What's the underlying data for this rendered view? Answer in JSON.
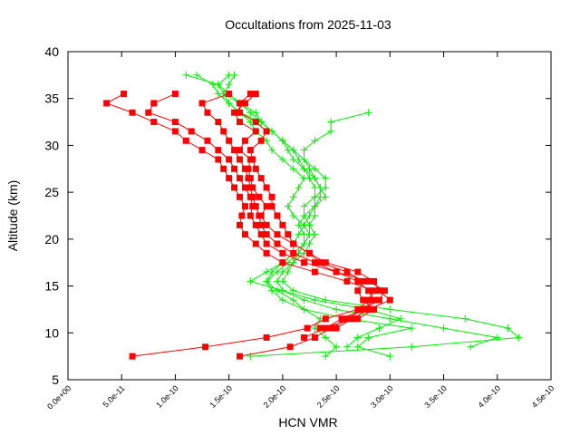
{
  "chart_data": {
    "type": "line",
    "title": "Occultations from 2025-11-03",
    "xlabel": "HCN VMR",
    "ylabel": "Altitude (km)",
    "xlim": [
      0,
      4.5e-10
    ],
    "ylim": [
      5,
      40
    ],
    "xticks": [
      0,
      5e-11,
      1e-10,
      1.5e-10,
      2e-10,
      2.5e-10,
      3e-10,
      3.5e-10,
      4e-10,
      4.5e-10
    ],
    "xtick_labels": [
      "0.0e+00",
      "5.0e-11",
      "1.0e-10",
      "1.5e-10",
      "2.0e-10",
      "2.5e-10",
      "3.0e-10",
      "3.5e-10",
      "4.0e-10",
      "4.5e-10"
    ],
    "yticks": [
      5,
      10,
      15,
      20,
      25,
      30,
      35,
      40
    ],
    "ytick_labels": [
      "5",
      "10",
      "15",
      "20",
      "25",
      "30",
      "35",
      "40"
    ],
    "grid": false,
    "colors": {
      "red_series": "#ff0000",
      "green_series": "#00ee00"
    },
    "red_altitudes": [
      7.5,
      8.5,
      9.5,
      10.5,
      11.5,
      12.5,
      13.5,
      14.5,
      15.5,
      16.5,
      17.5,
      18.5,
      19.5,
      20.5,
      21.5,
      22.5,
      23.5,
      24.5,
      25.5,
      26.5,
      27.5,
      28.5,
      29.5,
      30.5,
      31.5,
      32.5,
      33.5,
      34.5,
      35.5
    ],
    "green_altitudes": [
      7.5,
      8.5,
      9.5,
      10.5,
      11.5,
      12.5,
      13.5,
      14.5,
      15.5,
      16.5,
      17.5,
      18.5,
      19.5,
      20.5,
      21.5,
      22.5,
      23.5,
      24.5,
      25.5,
      26.5,
      27.5,
      28.5,
      29.5,
      30.5,
      31.5,
      32.5,
      33.5,
      34.5,
      35.5,
      36.5,
      37.5
    ],
    "series": [
      {
        "marker": "square",
        "color": "#ff0000",
        "values": [
          6e-11,
          1.28e-10,
          1.85e-10,
          2.23e-10,
          2.4e-10,
          2.7e-10,
          2.8e-10,
          2.85e-10,
          2.6e-10,
          2.3e-10,
          2e-10,
          1.85e-10,
          1.75e-10,
          1.65e-10,
          1.6e-10,
          1.62e-10,
          1.65e-10,
          1.6e-10,
          1.55e-10,
          1.5e-10,
          1.45e-10,
          1.4e-10,
          1.25e-10,
          1.1e-10,
          1e-10,
          8e-11,
          6e-11,
          3.6e-11,
          5.2e-11
        ]
      },
      {
        "marker": "square",
        "color": "#ff0000",
        "values": [
          1.6e-10,
          2.07e-10,
          2.3e-10,
          2.45e-10,
          2.6e-10,
          2.75e-10,
          2.85e-10,
          2.8e-10,
          2.7e-10,
          2.5e-10,
          2.2e-10,
          2e-10,
          1.85e-10,
          1.8e-10,
          1.75e-10,
          1.7e-10,
          1.72e-10,
          1.7e-10,
          1.65e-10,
          1.6e-10,
          1.55e-10,
          1.5e-10,
          1.4e-10,
          1.3e-10,
          1.15e-10,
          1e-10,
          7.5e-11,
          8e-11,
          1e-10
        ]
      },
      {
        "marker": "square",
        "color": "#ff0000",
        "values": [
          null,
          null,
          2.2e-10,
          2.4e-10,
          2.55e-10,
          2.75e-10,
          2.9e-10,
          2.95e-10,
          2.8e-10,
          2.5e-10,
          2.3e-10,
          2.1e-10,
          1.95e-10,
          1.85e-10,
          1.8e-10,
          1.78e-10,
          1.75e-10,
          1.72e-10,
          1.7e-10,
          1.68e-10,
          1.65e-10,
          1.6e-10,
          1.55e-10,
          1.5e-10,
          1.45e-10,
          1.4e-10,
          1.3e-10,
          1.25e-10,
          1.5e-10
        ]
      },
      {
        "marker": "square",
        "color": "#ff0000",
        "values": [
          null,
          null,
          null,
          2.5e-10,
          2.65e-10,
          2.8e-10,
          3e-10,
          2.9e-10,
          2.85e-10,
          2.7e-10,
          2.4e-10,
          2.25e-10,
          2.1e-10,
          1.95e-10,
          1.85e-10,
          1.8e-10,
          1.85e-10,
          1.78e-10,
          1.72e-10,
          1.7e-10,
          1.68e-10,
          1.7e-10,
          1.6e-10,
          1.65e-10,
          1.75e-10,
          1.6e-10,
          1.55e-10,
          1.65e-10,
          1.75e-10
        ]
      },
      {
        "marker": "square",
        "color": "#ff0000",
        "values": [
          null,
          null,
          null,
          2.35e-10,
          2.7e-10,
          2.85e-10,
          2.75e-10,
          2.7e-10,
          2.75e-10,
          2.6e-10,
          2.35e-10,
          2.25e-10,
          2.1e-10,
          2.05e-10,
          2e-10,
          1.95e-10,
          1.9e-10,
          1.9e-10,
          1.85e-10,
          1.8e-10,
          1.75e-10,
          1.72e-10,
          1.7e-10,
          1.8e-10,
          1.85e-10,
          1.75e-10,
          1.6e-10,
          1.6e-10,
          1.7e-10
        ]
      },
      {
        "marker": "plus",
        "color": "#00ee00",
        "values": [
          3e-10,
          2.7e-10,
          2.8e-10,
          3.2e-10,
          2.6e-10,
          2.2e-10,
          2e-10,
          1.9e-10,
          1.85e-10,
          1.95e-10,
          2.05e-10,
          2.15e-10,
          2.2e-10,
          2.25e-10,
          2.2e-10,
          2.25e-10,
          2.3e-10,
          2.35e-10,
          2.35e-10,
          2.3e-10,
          2.25e-10,
          2.2e-10,
          2.1e-10,
          2e-10,
          1.9e-10,
          1.8e-10,
          1.7e-10,
          1.6e-10,
          1.5e-10,
          1.4e-10,
          1.1e-10
        ]
      },
      {
        "marker": "plus",
        "color": "#00ee00",
        "values": [
          1.7e-10,
          3.2e-10,
          4.2e-10,
          4.1e-10,
          3.7e-10,
          3e-10,
          2.4e-10,
          2.1e-10,
          2e-10,
          2.05e-10,
          2.1e-10,
          2.15e-10,
          2.2e-10,
          2.2e-10,
          2.15e-10,
          2.2e-10,
          2.3e-10,
          2.4e-10,
          2.35e-10,
          2.3e-10,
          2.2e-10,
          2.1e-10,
          2.05e-10,
          2e-10,
          1.9e-10,
          1.8e-10,
          1.6e-10,
          1.5e-10,
          1.45e-10,
          1.4e-10,
          1.5e-10
        ]
      },
      {
        "marker": "plus",
        "color": "#00ee00",
        "values": [
          null,
          3.75e-10,
          4e-10,
          3.5e-10,
          3e-10,
          2.5e-10,
          2.2e-10,
          2e-10,
          1.95e-10,
          2e-10,
          2.1e-10,
          2.2e-10,
          2.25e-10,
          2.3e-10,
          2.25e-10,
          2.2e-10,
          2.2e-10,
          2.3e-10,
          2.4e-10,
          2.4e-10,
          2.3e-10,
          2.2e-10,
          2.2e-10,
          2.3e-10,
          2.45e-10,
          2.45e-10,
          2.8e-10,
          null,
          null,
          null,
          null
        ]
      },
      {
        "marker": "plus",
        "color": "#00ee00",
        "values": [
          2.4e-10,
          2.5e-10,
          2.4e-10,
          2.3e-10,
          2.35e-10,
          2.2e-10,
          2.1e-10,
          1.95e-10,
          1.85e-10,
          1.9e-10,
          2e-10,
          2.1e-10,
          2.1e-10,
          2.15e-10,
          2.2e-10,
          2.1e-10,
          2.05e-10,
          2.1e-10,
          2.15e-10,
          2.2e-10,
          2.1e-10,
          2e-10,
          1.9e-10,
          1.85e-10,
          1.75e-10,
          1.7e-10,
          1.6e-10,
          1.5e-10,
          1.4e-10,
          1.35e-10,
          1.2e-10
        ]
      },
      {
        "marker": "plus",
        "color": "#00ee00",
        "values": [
          null,
          2.6e-10,
          2.7e-10,
          2.9e-10,
          3.1e-10,
          2.8e-10,
          2.3e-10,
          2e-10,
          1.7e-10,
          1.85e-10,
          2e-10,
          2.1e-10,
          2.2e-10,
          2.25e-10,
          2.25e-10,
          2.3e-10,
          2.3e-10,
          2.3e-10,
          2.3e-10,
          2.25e-10,
          2.2e-10,
          2.15e-10,
          2.1e-10,
          2e-10,
          1.9e-10,
          1.8e-10,
          1.75e-10,
          1.6e-10,
          1.45e-10,
          1.5e-10,
          1.55e-10
        ]
      }
    ]
  }
}
